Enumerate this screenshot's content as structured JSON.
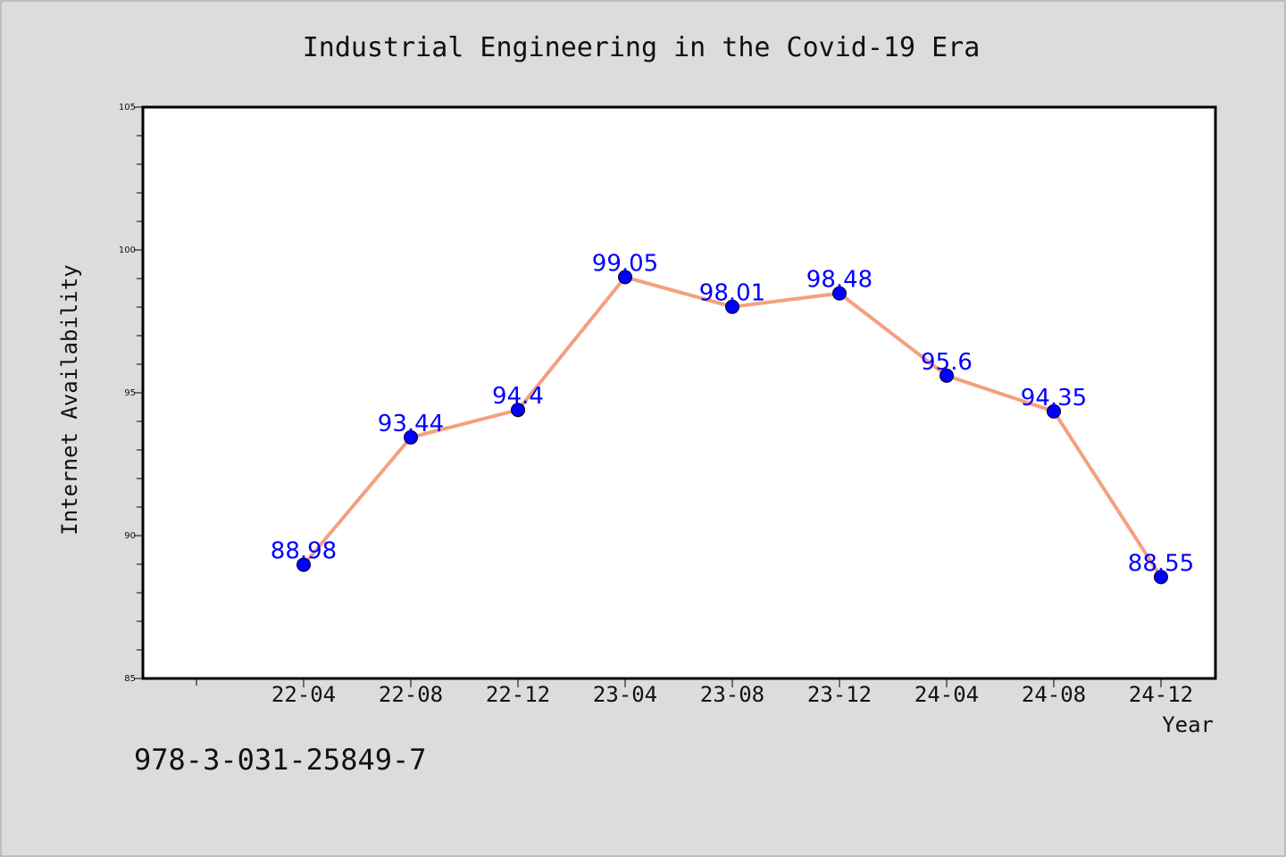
{
  "chart_data": {
    "type": "line",
    "title": "Industrial Engineering in the Covid-19 Era",
    "xlabel": "Year",
    "ylabel": "Internet Availability",
    "categories": [
      "22-04",
      "22-08",
      "22-12",
      "23-04",
      "23-08",
      "23-12",
      "24-04",
      "24-08",
      "24-12"
    ],
    "values": [
      88.98,
      93.44,
      94.4,
      99.05,
      98.01,
      98.48,
      95.6,
      94.35,
      88.55
    ],
    "data_labels": [
      "88.98",
      "93.44",
      "94.4",
      "99.05",
      "98.01",
      "98.48",
      "95.6",
      "94.35",
      "88.55"
    ],
    "ylim": [
      85,
      105
    ],
    "yticks": [
      85,
      90,
      95,
      100,
      105
    ],
    "grid": false,
    "line_color": "#f4a07f",
    "marker_color": "#0000ff",
    "label_color": "#0000ff"
  },
  "footer": {
    "isbn": "978-3-031-25849-7"
  }
}
